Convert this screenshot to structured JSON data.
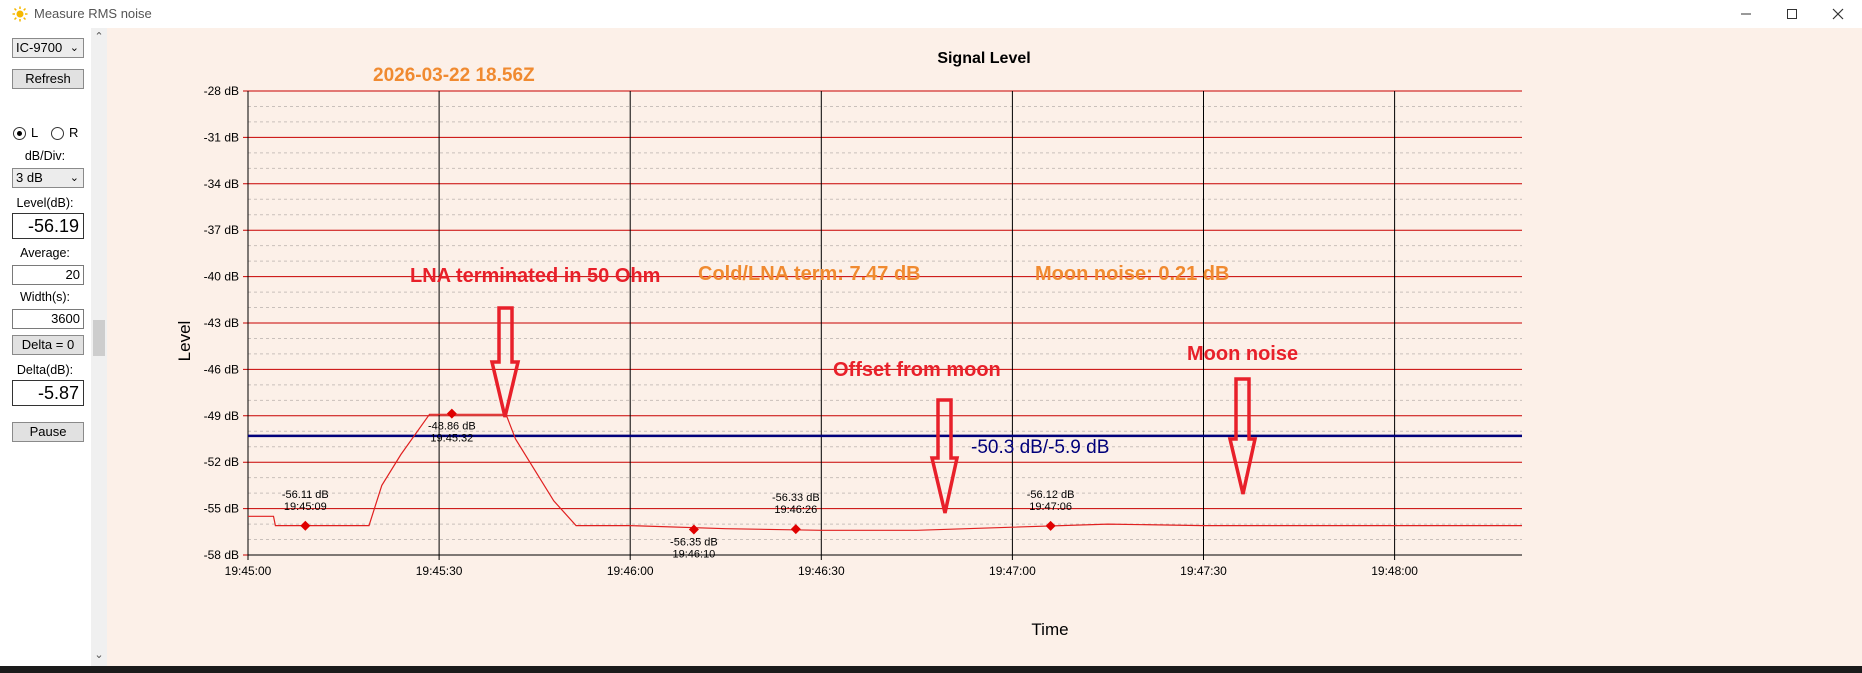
{
  "window": {
    "title": "Measure RMS noise",
    "icon": "sun-icon"
  },
  "controls": {
    "radio_select": "IC-9700",
    "refresh_label": "Refresh",
    "channel_left_label": "L",
    "channel_right_label": "R",
    "channel_selected": "L",
    "db_div_label": "dB/Div:",
    "db_div_value": "3 dB",
    "level_label": "Level(dB):",
    "level_value": "-56.19",
    "average_label": "Average:",
    "average_value": "20",
    "width_label": "Width(s):",
    "width_value": "3600",
    "delta_zero_label": "Delta = 0",
    "delta_label": "Delta(dB):",
    "delta_value": "-5.87",
    "pause_label": "Pause"
  },
  "chart_data": {
    "type": "line",
    "title": "Signal Level",
    "xlabel": "Time",
    "ylabel": "Level",
    "timestamp": "2026-03-22 18.56Z",
    "y_unit": "dB",
    "ylim": [
      -58,
      -28
    ],
    "y_major_ticks": [
      -28,
      -31,
      -34,
      -37,
      -40,
      -43,
      -46,
      -49,
      -52,
      -55,
      -58
    ],
    "y_tick_labels": [
      "-28 dB",
      "-31 dB",
      "-34 dB",
      "-37 dB",
      "-40 dB",
      "-43 dB",
      "-46 dB",
      "-49 dB",
      "-52 dB",
      "-55 dB",
      "-58 dB"
    ],
    "xlim_seconds": [
      0,
      200
    ],
    "x_ticks": [
      0,
      30,
      60,
      90,
      120,
      150,
      180
    ],
    "x_tick_labels": [
      "19:45:00",
      "19:45:30",
      "19:46:00",
      "19:46:30",
      "19:47:00",
      "19:47:30",
      "19:48:00"
    ],
    "grid": true,
    "series": [
      {
        "color": "#e02020",
        "x": [
          0,
          4,
          4.3,
          9,
          15,
          19,
          21,
          24,
          28.5,
          32,
          35,
          40.5,
          42,
          48,
          51.5,
          60,
          75,
          90,
          105,
          120,
          135,
          150,
          165,
          180,
          200
        ],
        "y": [
          -55.5,
          -55.5,
          -56.1,
          -56.1,
          -56.1,
          -56.1,
          -53.5,
          -51.5,
          -48.9,
          -48.9,
          -48.9,
          -48.9,
          -50.5,
          -54.5,
          -56.1,
          -56.1,
          -56.3,
          -56.4,
          -56.4,
          -56.2,
          -56.0,
          -56.1,
          -56.1,
          -56.1,
          -56.1
        ]
      }
    ],
    "markers": [
      {
        "x": 9,
        "y": -56.11,
        "value": "-56.11 dB",
        "time": "19:45:09"
      },
      {
        "x": 32,
        "y": -48.86,
        "value": "-48.86 dB",
        "time": "19:45:32"
      },
      {
        "x": 70,
        "y": -56.35,
        "value": "-56.35 dB",
        "time": "19:46:10"
      },
      {
        "x": 86,
        "y": -56.33,
        "value": "-56.33 dB",
        "time": "19:46:26"
      },
      {
        "x": 126,
        "y": -56.12,
        "value": "-56.12 dB",
        "time": "19:47:06"
      }
    ],
    "reference_line": {
      "y": -50.3,
      "label": "-50.3 dB/-5.9 dB",
      "color": "#00007a"
    },
    "annotations": [
      {
        "text": "LNA terminated in 50 Ohm",
        "color": "#e8202a"
      },
      {
        "text": "Cold/LNA term: 7.47 dB",
        "color": "#f08a30"
      },
      {
        "text": "Moon noise: 0.21 dB",
        "color": "#f08a30"
      },
      {
        "text": "Offset from moon",
        "color": "#e8202a"
      },
      {
        "text": "Moon noise",
        "color": "#e8202a"
      }
    ]
  }
}
